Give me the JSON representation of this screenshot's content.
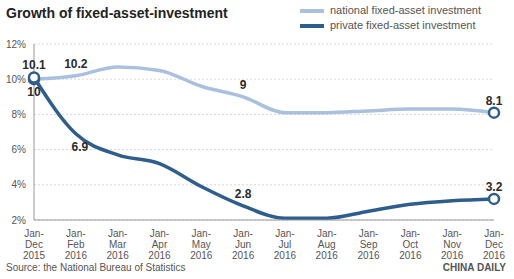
{
  "chart_data": {
    "type": "line",
    "title": "Growth of fixed-asset-investment",
    "categories": [
      "Jan-Dec 2015",
      "Jan-Feb 2016",
      "Jan-Mar 2016",
      "Jan-Apr 2016",
      "Jan-May 2016",
      "Jan-Jun 2016",
      "Jan-Jul 2016",
      "Jan-Aug 2016",
      "Jan-Sep 2016",
      "Jan-Oct 2016",
      "Jan-Nov 2016",
      "Jan-Dec 2016"
    ],
    "series": [
      {
        "name": "national fixed-asset investment",
        "color": "#a9c0de",
        "marker": "circle",
        "values": [
          10,
          10.2,
          10.7,
          10.5,
          9.6,
          9.0,
          8.1,
          8.1,
          8.2,
          8.3,
          8.3,
          8.1
        ],
        "value_labels": [
          "10",
          "10.2",
          null,
          null,
          null,
          "9",
          null,
          null,
          null,
          null,
          null,
          "8.1"
        ]
      },
      {
        "name": "private fixed-asset investment",
        "color": "#2e5e8e",
        "marker": "circle",
        "values": [
          10.1,
          6.9,
          5.7,
          5.2,
          3.9,
          2.8,
          2.1,
          2.1,
          2.5,
          2.9,
          3.1,
          3.2
        ],
        "value_labels": [
          "10.1",
          "6.9",
          null,
          null,
          null,
          "2.8",
          null,
          null,
          null,
          null,
          null,
          "3.2"
        ]
      }
    ],
    "ylim": [
      2,
      12
    ],
    "yticks": [
      {
        "value": 2,
        "label": "2%"
      },
      {
        "value": 4,
        "label": "4%"
      },
      {
        "value": 6,
        "label": "6%"
      },
      {
        "value": 8,
        "label": "8%"
      },
      {
        "value": 10,
        "label": "10%"
      },
      {
        "value": 12,
        "label": "12%"
      }
    ],
    "grid": true,
    "legend": "top right",
    "data_labels": true,
    "annotations": [
      "Source: the National Bureau of Statistics",
      "CHINA DAILY"
    ]
  }
}
